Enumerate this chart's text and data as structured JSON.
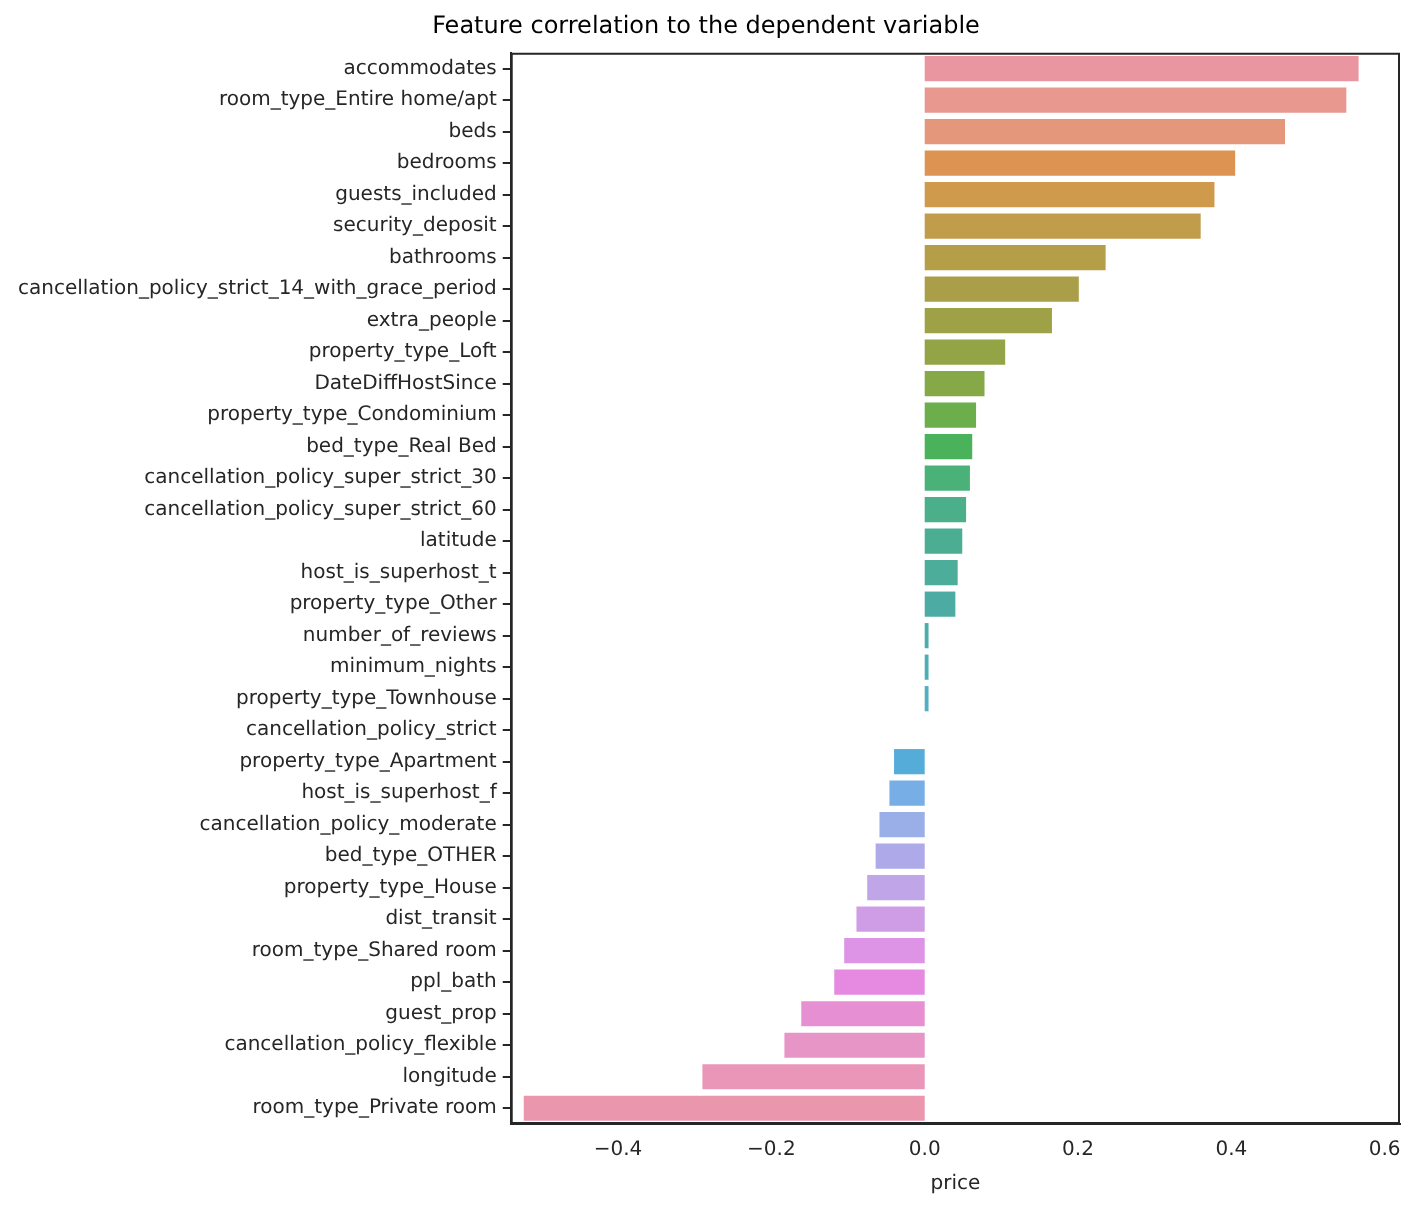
{
  "chart_data": {
    "type": "bar",
    "orientation": "horizontal",
    "title": "Feature correlation to the dependent variable",
    "xlabel": "price",
    "categories": [
      "accommodates",
      "room_type_Entire home/apt",
      "beds",
      "bedrooms",
      "guests_included",
      "security_deposit",
      "bathrooms",
      "cancellation_policy_strict_14_with_grace_period",
      "extra_people",
      "property_type_Loft",
      "DateDiffHostSince",
      "property_type_Condominium",
      "bed_type_Real Bed",
      "cancellation_policy_super_strict_30",
      "cancellation_policy_super_strict_60",
      "latitude",
      "host_is_superhost_t",
      "property_type_Other",
      "number_of_reviews",
      "minimum_nights",
      "property_type_Townhouse",
      "cancellation_policy_strict",
      "property_type_Apartment",
      "host_is_superhost_f",
      "cancellation_policy_moderate",
      "bed_type_OTHER",
      "property_type_House",
      "dist_transit",
      "room_type_Shared room",
      "ppl_bath",
      "guest_prop",
      "cancellation_policy_flexible",
      "longitude",
      "room_type_Private room"
    ],
    "values": [
      0.566,
      0.55,
      0.47,
      0.405,
      0.378,
      0.36,
      0.236,
      0.201,
      0.166,
      0.105,
      0.078,
      0.067,
      0.062,
      0.059,
      0.054,
      0.049,
      0.043,
      0.04,
      0.005,
      0.005,
      0.005,
      0,
      -0.04,
      -0.046,
      -0.059,
      -0.064,
      -0.075,
      -0.089,
      -0.105,
      -0.118,
      -0.161,
      -0.183,
      -0.29,
      -0.523
    ],
    "colors": [
      "#ea96a0",
      "#e99890",
      "#e5977b",
      "#dd9352",
      "#cf9a4c",
      "#c19c4a",
      "#b59e48",
      "#aa9e48",
      "#9fa147",
      "#93a447",
      "#86a948",
      "#6bae4b",
      "#49b25b",
      "#4ab278",
      "#4bb089",
      "#4bae93",
      "#4cad9b",
      "#4caca4",
      "#4cadab",
      "#4eaeb5",
      "#50afc0",
      "#52b0cc",
      "#56acd9",
      "#77aee5",
      "#9aaee8",
      "#aeaaea",
      "#c0a5e8",
      "#cf9de5",
      "#dd93e6",
      "#e58ae0",
      "#e68fd3",
      "#e794c6",
      "#e996b9",
      "#ea97ae"
    ],
    "xlim": [
      -0.54,
      0.62
    ],
    "xticks": [
      {
        "value": -0.4,
        "label": "−0.4"
      },
      {
        "value": -0.2,
        "label": "−0.2"
      },
      {
        "value": 0,
        "label": "0.0"
      },
      {
        "value": 0.2,
        "label": "0.2"
      },
      {
        "value": 0.4,
        "label": "0.4"
      },
      {
        "value": 0.6,
        "label": "0.6"
      }
    ],
    "grid": false,
    "legend": false
  }
}
